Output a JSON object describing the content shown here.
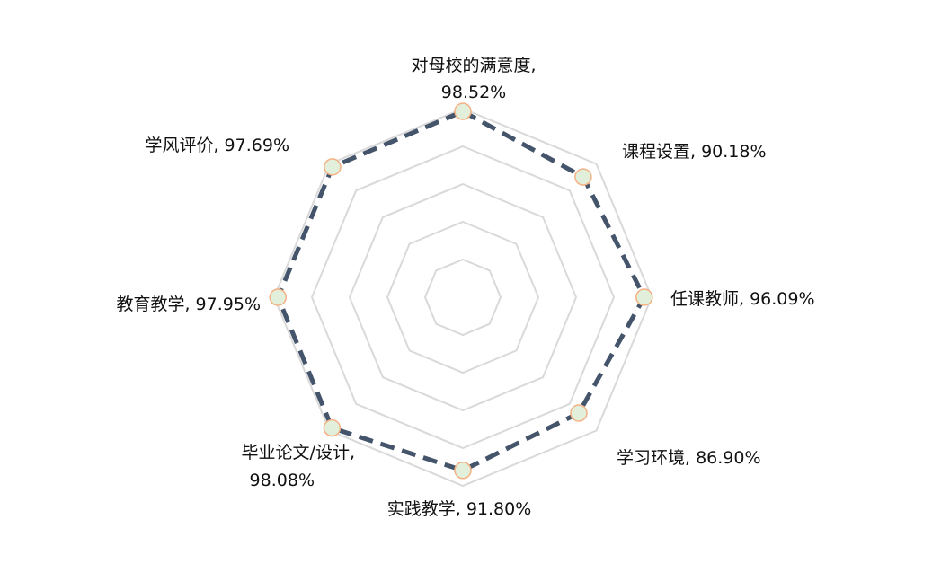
{
  "chart_data": {
    "type": "radar",
    "title": "",
    "categories": [
      "对母校的满意度",
      "课程设置",
      "任课教师",
      "学习环境",
      "实践教学",
      "毕业论文/设计",
      "教育教学",
      "学风评价"
    ],
    "series": [
      {
        "values": [
          98.52,
          90.18,
          96.09,
          86.9,
          91.8,
          98.08,
          97.95,
          97.69
        ]
      }
    ],
    "labels": [
      [
        "对母校的满意度,",
        "98.52%"
      ],
      [
        "课程设置, 90.18%"
      ],
      [
        "任课教师, 96.09%"
      ],
      [
        "学习环境, 86.90%"
      ],
      [
        "实践教学, 91.80%"
      ],
      [
        "毕业论文/设计,",
        "98.08%"
      ],
      [
        "教育教学, 97.95%"
      ],
      [
        "学风评价, 97.69%"
      ]
    ],
    "rlim": [
      0,
      100
    ],
    "grid_rings": 5,
    "grid": true,
    "legend": "none",
    "line_style": "dashed",
    "colors": {
      "line": "#44546A",
      "grid": "#D9D9D9",
      "marker_fill": "#E2EFDA",
      "marker_stroke": "#F4B183",
      "label_text": "#111111"
    }
  }
}
